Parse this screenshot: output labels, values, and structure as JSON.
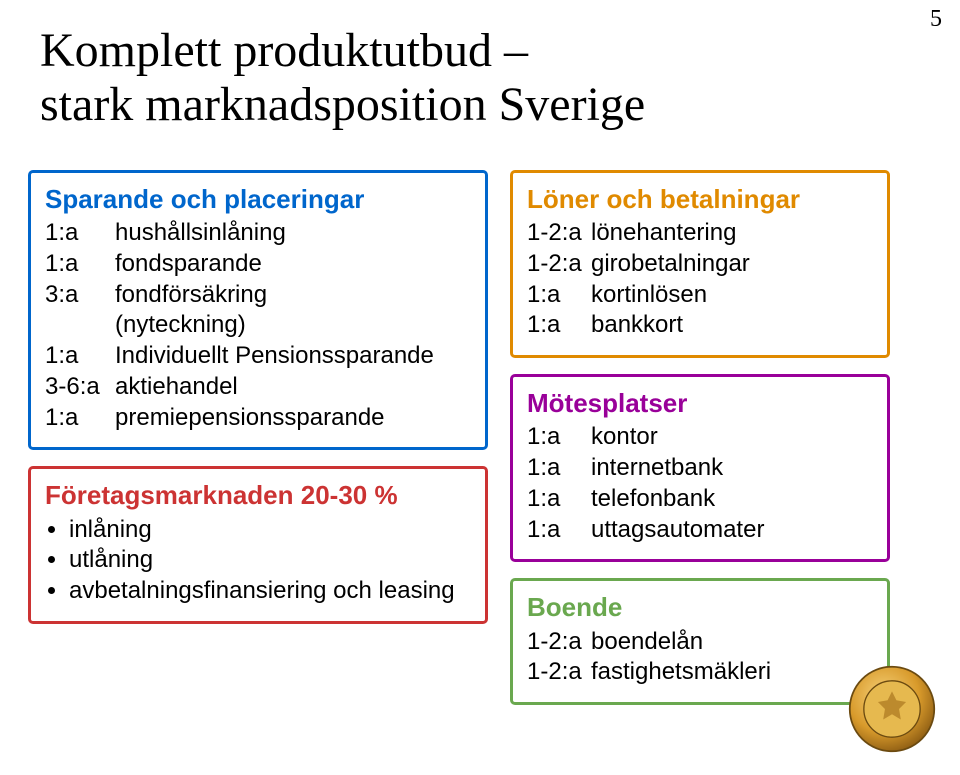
{
  "page_number": "5",
  "title_line1": "Komplett produktutbud –",
  "title_line2": "stark marknadsposition Sverige",
  "colors": {
    "blue": "#0066cc",
    "red": "#cc3333",
    "orange": "#e08a00",
    "purple": "#990099",
    "green": "#6aa84f"
  },
  "left": {
    "savings": {
      "color_key": "blue",
      "heading": "Sparande och placeringar",
      "rows": [
        {
          "rank": "1:a",
          "label": "hushållsinlåning"
        },
        {
          "rank": "1:a",
          "label": "fondsparande"
        },
        {
          "rank": "3:a",
          "label": "fondförsäkring"
        },
        {
          "rank": "",
          "label": "(nyteckning)"
        },
        {
          "rank": "1:a",
          "label": "Individuellt Pensionssparande"
        },
        {
          "rank": "3-6:a",
          "label": "aktiehandel"
        },
        {
          "rank": "1:a",
          "label": "premiepensionssparande"
        }
      ]
    },
    "corporate": {
      "color_key": "red",
      "heading": "Företagsmarknaden 20-30 %",
      "bullets": [
        "inlåning",
        "utlåning",
        "avbetalningsfinansiering och leasing"
      ]
    }
  },
  "right": {
    "payments": {
      "color_key": "orange",
      "heading": "Löner och betalningar",
      "rows": [
        {
          "rank": "1-2:a",
          "label": "lönehantering"
        },
        {
          "rank": "1-2:a",
          "label": "girobetalningar"
        },
        {
          "rank": "1:a",
          "label": "kortinlösen"
        },
        {
          "rank": "1:a",
          "label": "bankkort"
        }
      ]
    },
    "meeting": {
      "color_key": "purple",
      "heading": "Mötesplatser",
      "rows": [
        {
          "rank": "1:a",
          "label": "kontor"
        },
        {
          "rank": "1:a",
          "label": "internetbank"
        },
        {
          "rank": "1:a",
          "label": "telefonbank"
        },
        {
          "rank": "1:a",
          "label": "uttagsautomater"
        }
      ]
    },
    "housing": {
      "color_key": "green",
      "heading": "Boende",
      "rows": [
        {
          "rank": "1-2:a",
          "label": "boendelån"
        },
        {
          "rank": "1-2:a",
          "label": "fastighetsmäkleri"
        }
      ]
    }
  },
  "logo": {
    "alt": "Föreningssparbanken seal"
  }
}
